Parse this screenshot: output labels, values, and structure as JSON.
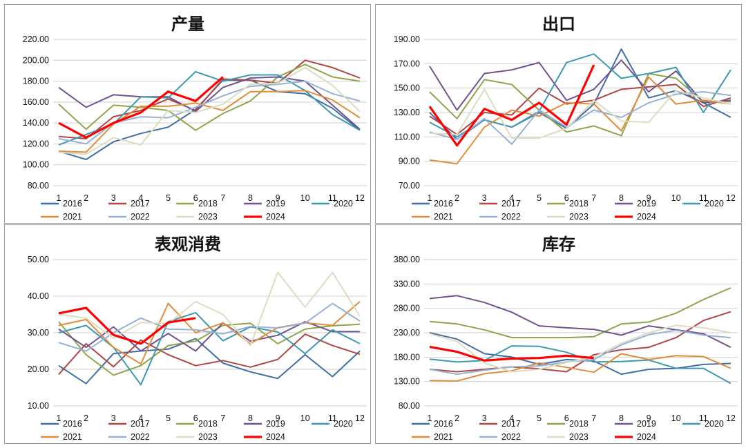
{
  "years": [
    "2016",
    "2017",
    "2018",
    "2019",
    "2020",
    "2021",
    "2022",
    "2023",
    "2024"
  ],
  "colors": [
    "#3f6ea6",
    "#b04541",
    "#8ea54a",
    "#71518f",
    "#3d99b0",
    "#e38b3a",
    "#95b1d6",
    "#dcdcc1",
    "#ff0000"
  ],
  "months": [
    "1",
    "2",
    "3",
    "4",
    "5",
    "6",
    "7",
    "8",
    "9",
    "10",
    "11",
    "12"
  ],
  "chart_data": [
    {
      "type": "line",
      "title": "产量",
      "ylim": [
        80,
        220
      ],
      "ytick_step": 20,
      "ytick_labels": [
        "80.00",
        "100.00",
        "120.00",
        "140.00",
        "160.00",
        "180.00",
        "200.00",
        "220.00"
      ],
      "series": [
        {
          "name": "2016",
          "values": [
            113,
            105,
            122,
            130,
            136,
            153,
            181,
            181,
            170,
            168,
            154,
            133
          ]
        },
        {
          "name": "2017",
          "values": [
            127,
            125,
            146,
            152,
            163,
            152,
            182,
            181,
            178,
            200,
            193,
            183
          ]
        },
        {
          "name": "2018",
          "values": [
            158,
            134,
            157,
            155,
            152,
            133,
            149,
            161,
            184,
            196,
            184,
            180
          ]
        },
        {
          "name": "2019",
          "values": [
            174,
            155,
            167,
            165,
            165,
            151,
            174,
            183,
            184,
            180,
            157,
            134
          ]
        },
        {
          "name": "2020",
          "values": [
            119,
            129,
            139,
            165,
            164,
            189,
            180,
            186,
            186,
            171,
            148,
            133
          ]
        },
        {
          "name": "2021",
          "values": [
            113,
            112,
            139,
            156,
            156,
            159,
            152,
            170,
            170,
            171,
            162,
            145
          ]
        },
        {
          "name": "2022",
          "values": [
            125,
            120,
            140,
            146,
            145,
            155,
            166,
            175,
            177,
            180,
            168,
            161
          ]
        },
        {
          "name": "2023",
          "values": [
            112,
            110,
            126,
            119,
            152,
            150,
            158,
            177,
            178,
            193,
            176,
            151
          ]
        },
        {
          "name": "2024",
          "values": [
            140,
            126,
            140,
            150,
            170,
            161,
            184
          ]
        }
      ]
    },
    {
      "type": "line",
      "title": "出口",
      "ylim": [
        70,
        190
      ],
      "ytick_step": 20,
      "ytick_labels": [
        "70.00",
        "90.00",
        "110.00",
        "130.00",
        "150.00",
        "170.00",
        "190.00"
      ],
      "series": [
        {
          "name": "2016",
          "values": [
            130,
            108,
            124,
            118,
            130,
            117,
            137,
            182,
            142,
            148,
            138,
            126
          ]
        },
        {
          "name": "2017",
          "values": [
            127,
            112,
            130,
            128,
            150,
            137,
            140,
            149,
            151,
            153,
            135,
            142
          ]
        },
        {
          "name": "2018",
          "values": [
            147,
            125,
            157,
            153,
            132,
            114,
            119,
            111,
            162,
            158,
            139,
            139
          ]
        },
        {
          "name": "2019",
          "values": [
            168,
            132,
            162,
            165,
            171,
            140,
            149,
            173,
            147,
            164,
            138,
            140
          ]
        },
        {
          "name": "2020",
          "values": [
            122,
            110,
            124,
            118,
            131,
            171,
            178,
            158,
            162,
            167,
            130,
            165
          ]
        },
        {
          "name": "2021",
          "values": [
            91,
            88,
            118,
            132,
            127,
            138,
            137,
            115,
            159,
            137,
            140,
            137
          ]
        },
        {
          "name": "2022",
          "values": [
            114,
            108,
            125,
            104,
            132,
            118,
            132,
            126,
            138,
            145,
            147,
            144
          ]
        },
        {
          "name": "2023",
          "values": [
            113,
            112,
            149,
            109,
            109,
            117,
            140,
            123,
            122,
            148,
            142,
            137
          ]
        },
        {
          "name": "2024",
          "values": [
            135,
            103,
            133,
            124,
            138,
            120,
            169
          ]
        }
      ]
    },
    {
      "type": "line",
      "title": "表观消费",
      "ylim": [
        10,
        50
      ],
      "ytick_step": 10,
      "ytick_labels": [
        "10.00",
        "20.00",
        "30.00",
        "40.00",
        "50.00"
      ],
      "series": [
        {
          "name": "2016",
          "values": [
            21.0,
            16.1,
            24.3,
            25.0,
            25.5,
            28.4,
            21.7,
            19.3,
            17.5,
            24.0,
            18.0,
            25.0
          ]
        },
        {
          "name": "2017",
          "values": [
            18.6,
            27.0,
            20.7,
            28.0,
            24.0,
            21.0,
            22.4,
            20.6,
            22.7,
            29.6,
            26.5,
            24.1
          ]
        },
        {
          "name": "2018",
          "values": [
            33.0,
            24.0,
            18.4,
            21.0,
            26.5,
            27.7,
            32.0,
            32.6,
            27.0,
            31.0,
            31.9,
            32.3
          ]
        },
        {
          "name": "2019",
          "values": [
            31.0,
            26.0,
            31.6,
            25.0,
            29.8,
            25.0,
            32.7,
            27.7,
            29.3,
            33.0,
            30.3,
            30.3
          ]
        },
        {
          "name": "2020",
          "values": [
            30.0,
            32.0,
            26.0,
            15.8,
            33.0,
            35.5,
            27.8,
            31.6,
            30.2,
            24.3,
            30.8,
            27.0
          ]
        },
        {
          "name": "2021",
          "values": [
            32.0,
            33.6,
            26.0,
            21.5,
            38.0,
            30.0,
            32.7,
            27.0,
            31.4,
            32.7,
            32.0,
            38.5
          ]
        },
        {
          "name": "2022",
          "values": [
            27.3,
            25.0,
            30.0,
            34.0,
            31.0,
            30.8,
            29.7,
            31.7,
            31.3,
            32.6,
            38.0,
            33.2
          ]
        },
        {
          "name": "2023",
          "values": [
            35.0,
            34.0,
            28.5,
            32.8,
            32.5,
            38.5,
            35.0,
            26.5,
            46.5,
            37.0,
            46.5,
            34.5
          ]
        },
        {
          "name": "2024",
          "values": [
            35.3,
            36.8,
            29.4,
            27.0,
            32.8,
            34.0
          ]
        }
      ]
    },
    {
      "type": "line",
      "title": "库存",
      "ylim": [
        80,
        380
      ],
      "ytick_step": 50,
      "ytick_labels": [
        "80.00",
        "130.00",
        "180.00",
        "230.00",
        "280.00",
        "330.00",
        "380.00"
      ],
      "series": [
        {
          "name": "2016",
          "values": [
            230,
            217,
            187,
            180,
            165,
            175,
            172,
            145,
            155,
            157,
            165,
            167
          ]
        },
        {
          "name": "2017",
          "values": [
            155,
            150,
            155,
            160,
            156,
            150,
            185,
            195,
            200,
            220,
            255,
            273
          ]
        },
        {
          "name": "2018",
          "values": [
            253,
            248,
            236,
            220,
            220,
            220,
            222,
            248,
            252,
            270,
            298,
            322
          ]
        },
        {
          "name": "2019",
          "values": [
            300,
            306,
            292,
            272,
            244,
            240,
            237,
            225,
            244,
            236,
            228,
            200
          ]
        },
        {
          "name": "2020",
          "values": [
            176,
            170,
            173,
            203,
            202,
            190,
            170,
            171,
            174,
            157,
            157,
            126
          ]
        },
        {
          "name": "2021",
          "values": [
            132,
            131,
            146,
            152,
            168,
            159,
            149,
            187,
            175,
            183,
            181,
            157
          ]
        },
        {
          "name": "2022",
          "values": [
            155,
            145,
            153,
            160,
            162,
            170,
            175,
            205,
            226,
            235,
            225,
            220
          ]
        },
        {
          "name": "2023",
          "values": [
            228,
            212,
            168,
            150,
            155,
            169,
            180,
            208,
            230,
            245,
            240,
            230
          ]
        },
        {
          "name": "2024",
          "values": [
            201,
            191,
            173,
            177,
            178,
            183,
            178
          ]
        }
      ]
    }
  ]
}
